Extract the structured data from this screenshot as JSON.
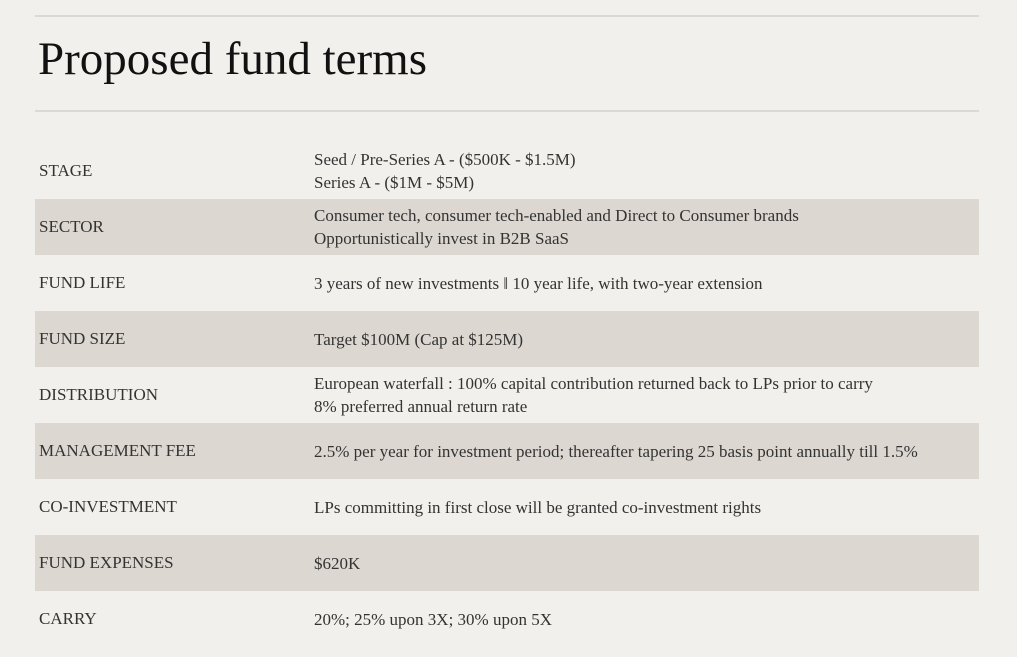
{
  "header": {
    "title": "Proposed fund terms"
  },
  "table": {
    "rows": [
      {
        "label": "STAGE",
        "lines": [
          "Seed / Pre-Series A - ($500K - $1.5M)",
          "Series A - ($1M - $5M)"
        ]
      },
      {
        "label": "SECTOR",
        "lines": [
          "Consumer tech, consumer tech-enabled and Direct to Consumer brands",
          "Opportunistically invest in B2B SaaS"
        ]
      },
      {
        "label": "FUND LIFE",
        "lines": [
          "3 years of new investments ǁ 10 year life, with two-year extension"
        ]
      },
      {
        "label": "FUND SIZE",
        "lines": [
          "Target $100M (Cap at $125M)"
        ]
      },
      {
        "label": "DISTRIBUTION",
        "lines": [
          "European waterfall : 100% capital contribution returned back to LPs prior to carry",
          "8% preferred annual return rate"
        ]
      },
      {
        "label": "MANAGEMENT FEE",
        "lines": [
          "2.5% per year for investment period; thereafter tapering 25 basis point annually till 1.5%"
        ]
      },
      {
        "label": "CO-INVESTMENT",
        "lines": [
          "LPs committing in first close will be granted co-investment rights"
        ]
      },
      {
        "label": "FUND EXPENSES",
        "lines": [
          "$620K"
        ]
      },
      {
        "label": "CARRY",
        "lines": [
          "20%; 25% upon 3X; 30% upon 5X"
        ]
      }
    ]
  }
}
